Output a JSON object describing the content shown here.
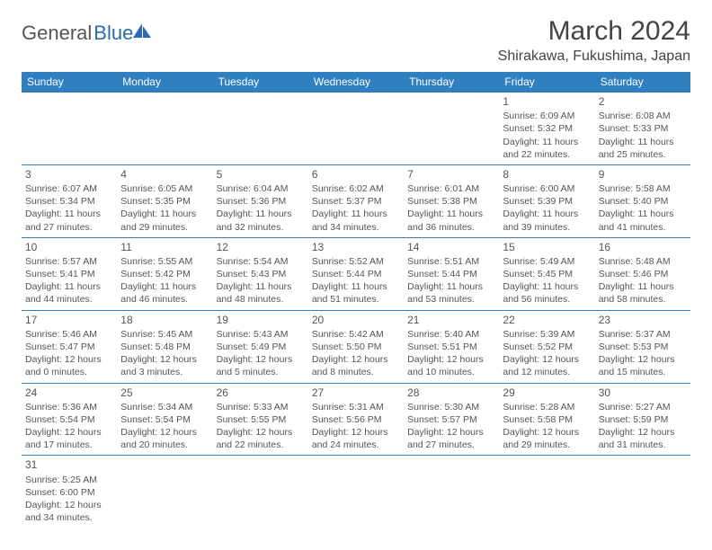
{
  "header": {
    "logo_text1": "General",
    "logo_text2": "Blue",
    "title": "March 2024",
    "location": "Shirakawa, Fukushima, Japan"
  },
  "colors": {
    "header_bg": "#2f7fc1",
    "header_fg": "#ffffff",
    "cell_border": "#2f7fc1",
    "text": "#555555",
    "logo_gray": "#555555",
    "logo_blue": "#2b6cb0"
  },
  "typography": {
    "title_size_pt": 30,
    "location_size_pt": 16,
    "dayheader_size_pt": 12,
    "cell_size_pt": 10.5
  },
  "day_headers": [
    "Sunday",
    "Monday",
    "Tuesday",
    "Wednesday",
    "Thursday",
    "Friday",
    "Saturday"
  ],
  "layout": {
    "type": "table",
    "columns": 7,
    "rows": 6,
    "leading_blanks": 5
  },
  "days": [
    {
      "n": "1",
      "sunrise": "Sunrise: 6:09 AM",
      "sunset": "Sunset: 5:32 PM",
      "day1": "Daylight: 11 hours",
      "day2": "and 22 minutes."
    },
    {
      "n": "2",
      "sunrise": "Sunrise: 6:08 AM",
      "sunset": "Sunset: 5:33 PM",
      "day1": "Daylight: 11 hours",
      "day2": "and 25 minutes."
    },
    {
      "n": "3",
      "sunrise": "Sunrise: 6:07 AM",
      "sunset": "Sunset: 5:34 PM",
      "day1": "Daylight: 11 hours",
      "day2": "and 27 minutes."
    },
    {
      "n": "4",
      "sunrise": "Sunrise: 6:05 AM",
      "sunset": "Sunset: 5:35 PM",
      "day1": "Daylight: 11 hours",
      "day2": "and 29 minutes."
    },
    {
      "n": "5",
      "sunrise": "Sunrise: 6:04 AM",
      "sunset": "Sunset: 5:36 PM",
      "day1": "Daylight: 11 hours",
      "day2": "and 32 minutes."
    },
    {
      "n": "6",
      "sunrise": "Sunrise: 6:02 AM",
      "sunset": "Sunset: 5:37 PM",
      "day1": "Daylight: 11 hours",
      "day2": "and 34 minutes."
    },
    {
      "n": "7",
      "sunrise": "Sunrise: 6:01 AM",
      "sunset": "Sunset: 5:38 PM",
      "day1": "Daylight: 11 hours",
      "day2": "and 36 minutes."
    },
    {
      "n": "8",
      "sunrise": "Sunrise: 6:00 AM",
      "sunset": "Sunset: 5:39 PM",
      "day1": "Daylight: 11 hours",
      "day2": "and 39 minutes."
    },
    {
      "n": "9",
      "sunrise": "Sunrise: 5:58 AM",
      "sunset": "Sunset: 5:40 PM",
      "day1": "Daylight: 11 hours",
      "day2": "and 41 minutes."
    },
    {
      "n": "10",
      "sunrise": "Sunrise: 5:57 AM",
      "sunset": "Sunset: 5:41 PM",
      "day1": "Daylight: 11 hours",
      "day2": "and 44 minutes."
    },
    {
      "n": "11",
      "sunrise": "Sunrise: 5:55 AM",
      "sunset": "Sunset: 5:42 PM",
      "day1": "Daylight: 11 hours",
      "day2": "and 46 minutes."
    },
    {
      "n": "12",
      "sunrise": "Sunrise: 5:54 AM",
      "sunset": "Sunset: 5:43 PM",
      "day1": "Daylight: 11 hours",
      "day2": "and 48 minutes."
    },
    {
      "n": "13",
      "sunrise": "Sunrise: 5:52 AM",
      "sunset": "Sunset: 5:44 PM",
      "day1": "Daylight: 11 hours",
      "day2": "and 51 minutes."
    },
    {
      "n": "14",
      "sunrise": "Sunrise: 5:51 AM",
      "sunset": "Sunset: 5:44 PM",
      "day1": "Daylight: 11 hours",
      "day2": "and 53 minutes."
    },
    {
      "n": "15",
      "sunrise": "Sunrise: 5:49 AM",
      "sunset": "Sunset: 5:45 PM",
      "day1": "Daylight: 11 hours",
      "day2": "and 56 minutes."
    },
    {
      "n": "16",
      "sunrise": "Sunrise: 5:48 AM",
      "sunset": "Sunset: 5:46 PM",
      "day1": "Daylight: 11 hours",
      "day2": "and 58 minutes."
    },
    {
      "n": "17",
      "sunrise": "Sunrise: 5:46 AM",
      "sunset": "Sunset: 5:47 PM",
      "day1": "Daylight: 12 hours",
      "day2": "and 0 minutes."
    },
    {
      "n": "18",
      "sunrise": "Sunrise: 5:45 AM",
      "sunset": "Sunset: 5:48 PM",
      "day1": "Daylight: 12 hours",
      "day2": "and 3 minutes."
    },
    {
      "n": "19",
      "sunrise": "Sunrise: 5:43 AM",
      "sunset": "Sunset: 5:49 PM",
      "day1": "Daylight: 12 hours",
      "day2": "and 5 minutes."
    },
    {
      "n": "20",
      "sunrise": "Sunrise: 5:42 AM",
      "sunset": "Sunset: 5:50 PM",
      "day1": "Daylight: 12 hours",
      "day2": "and 8 minutes."
    },
    {
      "n": "21",
      "sunrise": "Sunrise: 5:40 AM",
      "sunset": "Sunset: 5:51 PM",
      "day1": "Daylight: 12 hours",
      "day2": "and 10 minutes."
    },
    {
      "n": "22",
      "sunrise": "Sunrise: 5:39 AM",
      "sunset": "Sunset: 5:52 PM",
      "day1": "Daylight: 12 hours",
      "day2": "and 12 minutes."
    },
    {
      "n": "23",
      "sunrise": "Sunrise: 5:37 AM",
      "sunset": "Sunset: 5:53 PM",
      "day1": "Daylight: 12 hours",
      "day2": "and 15 minutes."
    },
    {
      "n": "24",
      "sunrise": "Sunrise: 5:36 AM",
      "sunset": "Sunset: 5:54 PM",
      "day1": "Daylight: 12 hours",
      "day2": "and 17 minutes."
    },
    {
      "n": "25",
      "sunrise": "Sunrise: 5:34 AM",
      "sunset": "Sunset: 5:54 PM",
      "day1": "Daylight: 12 hours",
      "day2": "and 20 minutes."
    },
    {
      "n": "26",
      "sunrise": "Sunrise: 5:33 AM",
      "sunset": "Sunset: 5:55 PM",
      "day1": "Daylight: 12 hours",
      "day2": "and 22 minutes."
    },
    {
      "n": "27",
      "sunrise": "Sunrise: 5:31 AM",
      "sunset": "Sunset: 5:56 PM",
      "day1": "Daylight: 12 hours",
      "day2": "and 24 minutes."
    },
    {
      "n": "28",
      "sunrise": "Sunrise: 5:30 AM",
      "sunset": "Sunset: 5:57 PM",
      "day1": "Daylight: 12 hours",
      "day2": "and 27 minutes."
    },
    {
      "n": "29",
      "sunrise": "Sunrise: 5:28 AM",
      "sunset": "Sunset: 5:58 PM",
      "day1": "Daylight: 12 hours",
      "day2": "and 29 minutes."
    },
    {
      "n": "30",
      "sunrise": "Sunrise: 5:27 AM",
      "sunset": "Sunset: 5:59 PM",
      "day1": "Daylight: 12 hours",
      "day2": "and 31 minutes."
    },
    {
      "n": "31",
      "sunrise": "Sunrise: 5:25 AM",
      "sunset": "Sunset: 6:00 PM",
      "day1": "Daylight: 12 hours",
      "day2": "and 34 minutes."
    }
  ]
}
